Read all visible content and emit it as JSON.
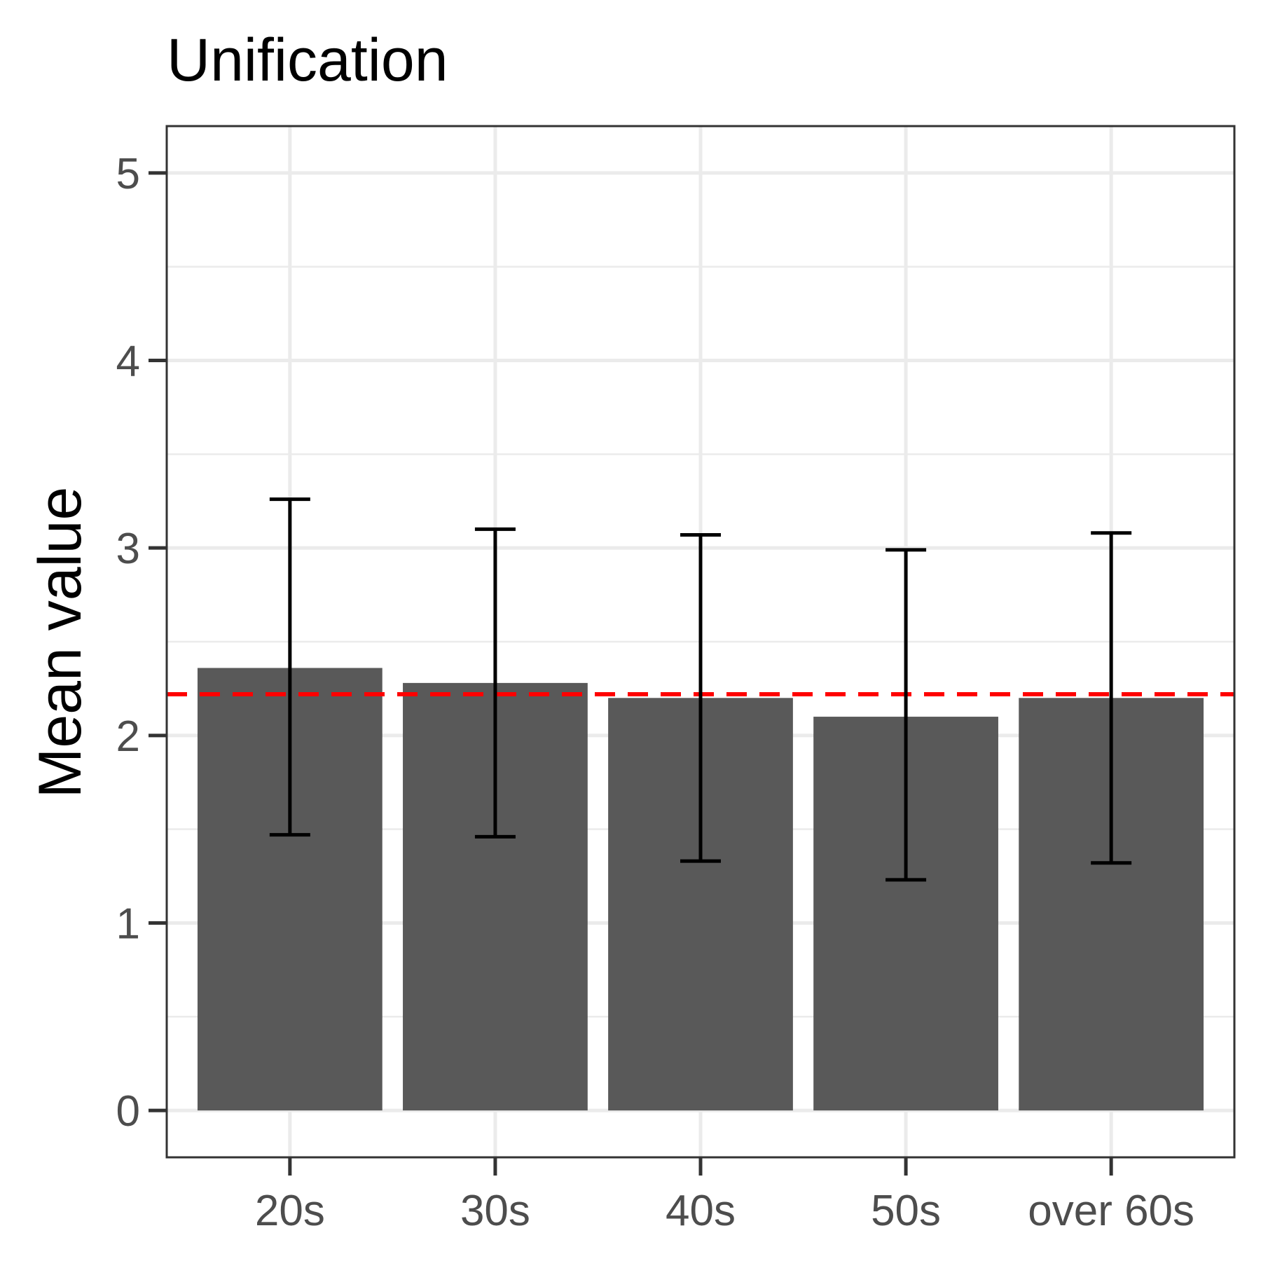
{
  "chart_data": {
    "type": "bar",
    "title": "Unification",
    "xlabel": "",
    "ylabel": "Mean value",
    "categories": [
      "20s",
      "30s",
      "40s",
      "50s",
      "over 60s"
    ],
    "values": [
      2.36,
      2.28,
      2.2,
      2.1,
      2.2
    ],
    "error_low": [
      1.47,
      1.46,
      1.33,
      1.23,
      1.32
    ],
    "error_high": [
      3.26,
      3.1,
      3.07,
      2.99,
      3.08
    ],
    "reference_line": {
      "value": 2.22,
      "color": "#ff0000",
      "style": "dashed"
    },
    "ylim": [
      -0.25,
      5.25
    ],
    "yticks": [
      0,
      1,
      2,
      3,
      4,
      5
    ],
    "grid": true,
    "colors": {
      "bar": "#595959",
      "error_bar": "#000000",
      "grid": "#ebebeb",
      "panel_border": "#333333"
    }
  }
}
